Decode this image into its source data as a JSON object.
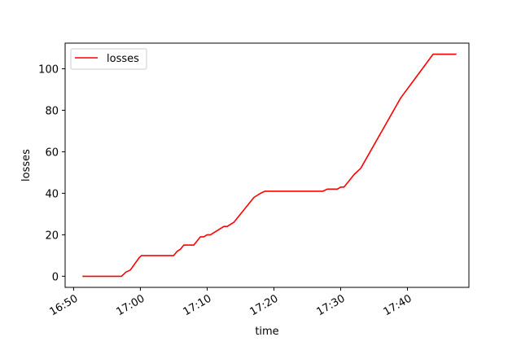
{
  "chart_data": {
    "type": "line",
    "title": "",
    "xlabel": "time",
    "ylabel": "losses",
    "x_unit": "clock time (HH:MM)",
    "xlim": [
      "16:48:44",
      "17:49:12"
    ],
    "ylim": [
      -5.35,
      112.35
    ],
    "x_ticks": [
      "16:50",
      "17:00",
      "17:10",
      "17:20",
      "17:30",
      "17:40"
    ],
    "y_ticks": [
      0,
      20,
      40,
      60,
      80,
      100
    ],
    "grid": false,
    "legend": "top-left",
    "colors": {
      "series": "#ff0000"
    },
    "series": [
      {
        "name": "losses",
        "x": [
          "16:51:20",
          "16:57:10",
          "16:57:50",
          "16:58:30",
          "16:59:50",
          "17:00:10",
          "17:05:00",
          "17:05:30",
          "17:06:00",
          "17:06:30",
          "17:07:00",
          "17:08:00",
          "17:08:30",
          "17:09:00",
          "17:09:30",
          "17:10:00",
          "17:10:30",
          "17:11:00",
          "17:11:30",
          "17:12:00",
          "17:12:30",
          "17:13:00",
          "17:13:30",
          "17:14:00",
          "17:15:00",
          "17:16:00",
          "17:17:00",
          "17:18:00",
          "17:18:40",
          "17:27:20",
          "17:28:00",
          "17:29:30",
          "17:30:00",
          "17:30:30",
          "17:31:00",
          "17:31:30",
          "17:32:00",
          "17:33:00",
          "17:39:00",
          "17:43:50",
          "17:47:20"
        ],
        "y": [
          0,
          0,
          2,
          3,
          9,
          10,
          10,
          12,
          13,
          15,
          15,
          15,
          17,
          19,
          19,
          20,
          20,
          21,
          22,
          23,
          24,
          24,
          25,
          26,
          30,
          34,
          38,
          40,
          41,
          41,
          42,
          42,
          43,
          43,
          45,
          47,
          49,
          52,
          86,
          107,
          107
        ]
      }
    ]
  }
}
